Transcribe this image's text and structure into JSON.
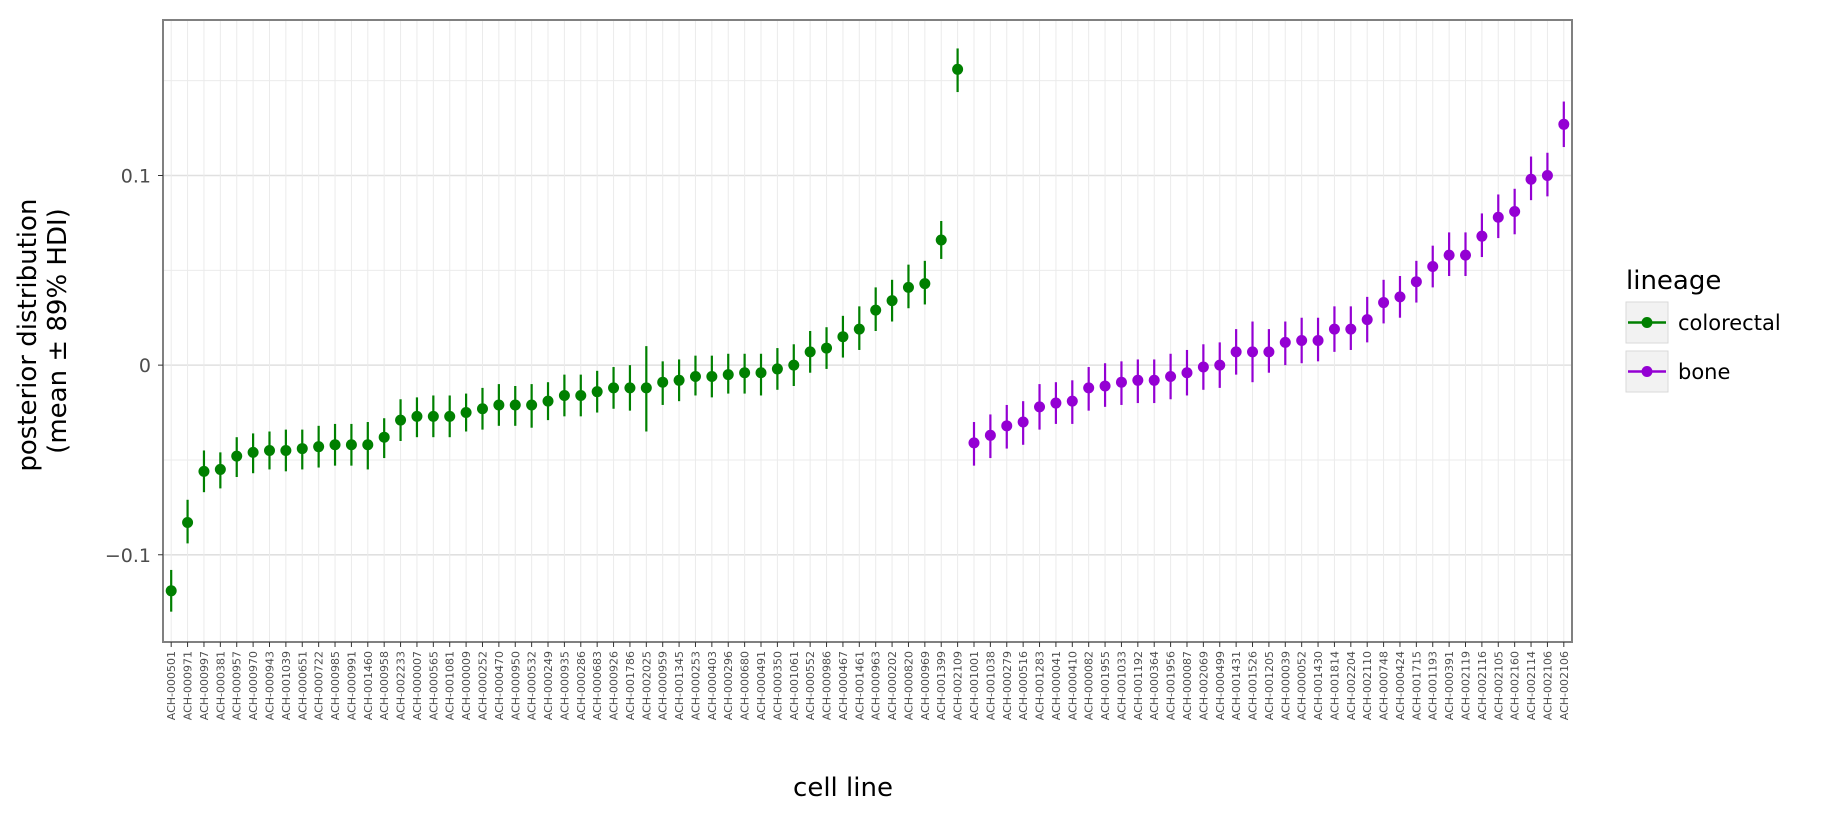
{
  "chart_data": {
    "type": "scatter",
    "xlabel": "cell line",
    "ylabel_lines": [
      "posterior distribution",
      "(mean ± 89% HDI)"
    ],
    "ylim": [
      -0.146,
      0.182
    ],
    "yticks": [
      -0.1,
      0,
      0.1
    ],
    "ytick_labels": [
      "−0.1",
      "0",
      "0.1"
    ],
    "grid": true,
    "legend": {
      "title": "lineage",
      "position": "right"
    },
    "series": [
      {
        "name": "colorectal",
        "color": "#008000",
        "points": [
          {
            "x": "ACH-000501",
            "mean": -0.119,
            "lo": -0.13,
            "hi": -0.108
          },
          {
            "x": "ACH-000971",
            "mean": -0.083,
            "lo": -0.094,
            "hi": -0.071
          },
          {
            "x": "ACH-000997",
            "mean": -0.056,
            "lo": -0.067,
            "hi": -0.045
          },
          {
            "x": "ACH-000381",
            "mean": -0.055,
            "lo": -0.065,
            "hi": -0.046
          },
          {
            "x": "ACH-000957",
            "mean": -0.048,
            "lo": -0.059,
            "hi": -0.038
          },
          {
            "x": "ACH-000970",
            "mean": -0.046,
            "lo": -0.057,
            "hi": -0.036
          },
          {
            "x": "ACH-000943",
            "mean": -0.045,
            "lo": -0.055,
            "hi": -0.035
          },
          {
            "x": "ACH-001039",
            "mean": -0.045,
            "lo": -0.056,
            "hi": -0.034
          },
          {
            "x": "ACH-000651",
            "mean": -0.044,
            "lo": -0.055,
            "hi": -0.034
          },
          {
            "x": "ACH-000722",
            "mean": -0.043,
            "lo": -0.054,
            "hi": -0.032
          },
          {
            "x": "ACH-000985",
            "mean": -0.042,
            "lo": -0.053,
            "hi": -0.031
          },
          {
            "x": "ACH-000991",
            "mean": -0.042,
            "lo": -0.053,
            "hi": -0.031
          },
          {
            "x": "ACH-001460",
            "mean": -0.042,
            "lo": -0.055,
            "hi": -0.03
          },
          {
            "x": "ACH-000958",
            "mean": -0.038,
            "lo": -0.049,
            "hi": -0.028
          },
          {
            "x": "ACH-002233",
            "mean": -0.029,
            "lo": -0.04,
            "hi": -0.018
          },
          {
            "x": "ACH-000007",
            "mean": -0.027,
            "lo": -0.038,
            "hi": -0.017
          },
          {
            "x": "ACH-000565",
            "mean": -0.027,
            "lo": -0.038,
            "hi": -0.016
          },
          {
            "x": "ACH-001081",
            "mean": -0.027,
            "lo": -0.038,
            "hi": -0.016
          },
          {
            "x": "ACH-000009",
            "mean": -0.025,
            "lo": -0.035,
            "hi": -0.015
          },
          {
            "x": "ACH-000252",
            "mean": -0.023,
            "lo": -0.034,
            "hi": -0.012
          },
          {
            "x": "ACH-000470",
            "mean": -0.021,
            "lo": -0.032,
            "hi": -0.01
          },
          {
            "x": "ACH-000950",
            "mean": -0.021,
            "lo": -0.032,
            "hi": -0.011
          },
          {
            "x": "ACH-000532",
            "mean": -0.021,
            "lo": -0.033,
            "hi": -0.01
          },
          {
            "x": "ACH-000249",
            "mean": -0.019,
            "lo": -0.029,
            "hi": -0.009
          },
          {
            "x": "ACH-000935",
            "mean": -0.016,
            "lo": -0.027,
            "hi": -0.005
          },
          {
            "x": "ACH-000286",
            "mean": -0.016,
            "lo": -0.027,
            "hi": -0.005
          },
          {
            "x": "ACH-000683",
            "mean": -0.014,
            "lo": -0.025,
            "hi": -0.003
          },
          {
            "x": "ACH-000926",
            "mean": -0.012,
            "lo": -0.023,
            "hi": -0.001
          },
          {
            "x": "ACH-001786",
            "mean": -0.012,
            "lo": -0.024,
            "hi": 0.0
          },
          {
            "x": "ACH-002025",
            "mean": -0.012,
            "lo": -0.035,
            "hi": 0.01
          },
          {
            "x": "ACH-000959",
            "mean": -0.009,
            "lo": -0.021,
            "hi": 0.002
          },
          {
            "x": "ACH-001345",
            "mean": -0.008,
            "lo": -0.019,
            "hi": 0.003
          },
          {
            "x": "ACH-000253",
            "mean": -0.006,
            "lo": -0.016,
            "hi": 0.005
          },
          {
            "x": "ACH-000403",
            "mean": -0.006,
            "lo": -0.017,
            "hi": 0.005
          },
          {
            "x": "ACH-000296",
            "mean": -0.005,
            "lo": -0.015,
            "hi": 0.006
          },
          {
            "x": "ACH-000680",
            "mean": -0.004,
            "lo": -0.015,
            "hi": 0.006
          },
          {
            "x": "ACH-000491",
            "mean": -0.004,
            "lo": -0.016,
            "hi": 0.006
          },
          {
            "x": "ACH-000350",
            "mean": -0.002,
            "lo": -0.013,
            "hi": 0.009
          },
          {
            "x": "ACH-001061",
            "mean": 0.0,
            "lo": -0.011,
            "hi": 0.011
          },
          {
            "x": "ACH-000552",
            "mean": 0.007,
            "lo": -0.004,
            "hi": 0.018
          },
          {
            "x": "ACH-000986",
            "mean": 0.009,
            "lo": -0.002,
            "hi": 0.02
          },
          {
            "x": "ACH-000467",
            "mean": 0.015,
            "lo": 0.004,
            "hi": 0.026
          },
          {
            "x": "ACH-001461",
            "mean": 0.019,
            "lo": 0.008,
            "hi": 0.031
          },
          {
            "x": "ACH-000963",
            "mean": 0.029,
            "lo": 0.018,
            "hi": 0.041
          },
          {
            "x": "ACH-000202",
            "mean": 0.034,
            "lo": 0.023,
            "hi": 0.045
          },
          {
            "x": "ACH-000820",
            "mean": 0.041,
            "lo": 0.03,
            "hi": 0.053
          },
          {
            "x": "ACH-000969",
            "mean": 0.043,
            "lo": 0.032,
            "hi": 0.055
          },
          {
            "x": "ACH-001399",
            "mean": 0.066,
            "lo": 0.056,
            "hi": 0.076
          },
          {
            "x": "ACH-002109",
            "mean": 0.156,
            "lo": 0.144,
            "hi": 0.167
          }
        ]
      },
      {
        "name": "bone",
        "color": "#9400d3",
        "points": [
          {
            "x": "ACH-001001",
            "mean": -0.041,
            "lo": -0.053,
            "hi": -0.03
          },
          {
            "x": "ACH-001038",
            "mean": -0.037,
            "lo": -0.049,
            "hi": -0.026
          },
          {
            "x": "ACH-000279",
            "mean": -0.032,
            "lo": -0.044,
            "hi": -0.021
          },
          {
            "x": "ACH-000516",
            "mean": -0.03,
            "lo": -0.042,
            "hi": -0.019
          },
          {
            "x": "ACH-001283",
            "mean": -0.022,
            "lo": -0.034,
            "hi": -0.01
          },
          {
            "x": "ACH-000041",
            "mean": -0.02,
            "lo": -0.031,
            "hi": -0.009
          },
          {
            "x": "ACH-000410",
            "mean": -0.019,
            "lo": -0.031,
            "hi": -0.008
          },
          {
            "x": "ACH-000082",
            "mean": -0.012,
            "lo": -0.024,
            "hi": -0.001
          },
          {
            "x": "ACH-001955",
            "mean": -0.011,
            "lo": -0.022,
            "hi": 0.001
          },
          {
            "x": "ACH-001033",
            "mean": -0.009,
            "lo": -0.021,
            "hi": 0.002
          },
          {
            "x": "ACH-001192",
            "mean": -0.008,
            "lo": -0.02,
            "hi": 0.003
          },
          {
            "x": "ACH-000364",
            "mean": -0.008,
            "lo": -0.02,
            "hi": 0.003
          },
          {
            "x": "ACH-001956",
            "mean": -0.006,
            "lo": -0.018,
            "hi": 0.006
          },
          {
            "x": "ACH-000087",
            "mean": -0.004,
            "lo": -0.016,
            "hi": 0.008
          },
          {
            "x": "ACH-002069",
            "mean": -0.001,
            "lo": -0.013,
            "hi": 0.011
          },
          {
            "x": "ACH-000499",
            "mean": 0.0,
            "lo": -0.012,
            "hi": 0.012
          },
          {
            "x": "ACH-001431",
            "mean": 0.007,
            "lo": -0.005,
            "hi": 0.019
          },
          {
            "x": "ACH-001526",
            "mean": 0.007,
            "lo": -0.009,
            "hi": 0.023
          },
          {
            "x": "ACH-001205",
            "mean": 0.007,
            "lo": -0.004,
            "hi": 0.019
          },
          {
            "x": "ACH-000039",
            "mean": 0.012,
            "lo": 0.0,
            "hi": 0.023
          },
          {
            "x": "ACH-000052",
            "mean": 0.013,
            "lo": 0.001,
            "hi": 0.025
          },
          {
            "x": "ACH-001430",
            "mean": 0.013,
            "lo": 0.002,
            "hi": 0.025
          },
          {
            "x": "ACH-001814",
            "mean": 0.019,
            "lo": 0.007,
            "hi": 0.031
          },
          {
            "x": "ACH-002204",
            "mean": 0.019,
            "lo": 0.008,
            "hi": 0.031
          },
          {
            "x": "ACH-002110",
            "mean": 0.024,
            "lo": 0.012,
            "hi": 0.036
          },
          {
            "x": "ACH-000748",
            "mean": 0.033,
            "lo": 0.022,
            "hi": 0.045
          },
          {
            "x": "ACH-000424",
            "mean": 0.036,
            "lo": 0.025,
            "hi": 0.047
          },
          {
            "x": "ACH-001715",
            "mean": 0.044,
            "lo": 0.033,
            "hi": 0.055
          },
          {
            "x": "ACH-001193",
            "mean": 0.052,
            "lo": 0.041,
            "hi": 0.063
          },
          {
            "x": "ACH-000391",
            "mean": 0.058,
            "lo": 0.047,
            "hi": 0.07
          },
          {
            "x": "ACH-002119",
            "mean": 0.058,
            "lo": 0.047,
            "hi": 0.07
          },
          {
            "x": "ACH-002116",
            "mean": 0.068,
            "lo": 0.057,
            "hi": 0.08
          },
          {
            "x": "ACH-002105",
            "mean": 0.078,
            "lo": 0.067,
            "hi": 0.09
          },
          {
            "x": "ACH-002160",
            "mean": 0.081,
            "lo": 0.069,
            "hi": 0.093
          },
          {
            "x": "ACH-002114",
            "mean": 0.098,
            "lo": 0.087,
            "hi": 0.11
          },
          {
            "x": "ACH-002106",
            "mean": 0.1,
            "lo": 0.089,
            "hi": 0.112
          },
          {
            "x": "ACH-002106",
            "mean": 0.127,
            "lo": 0.115,
            "hi": 0.139
          }
        ]
      }
    ]
  }
}
